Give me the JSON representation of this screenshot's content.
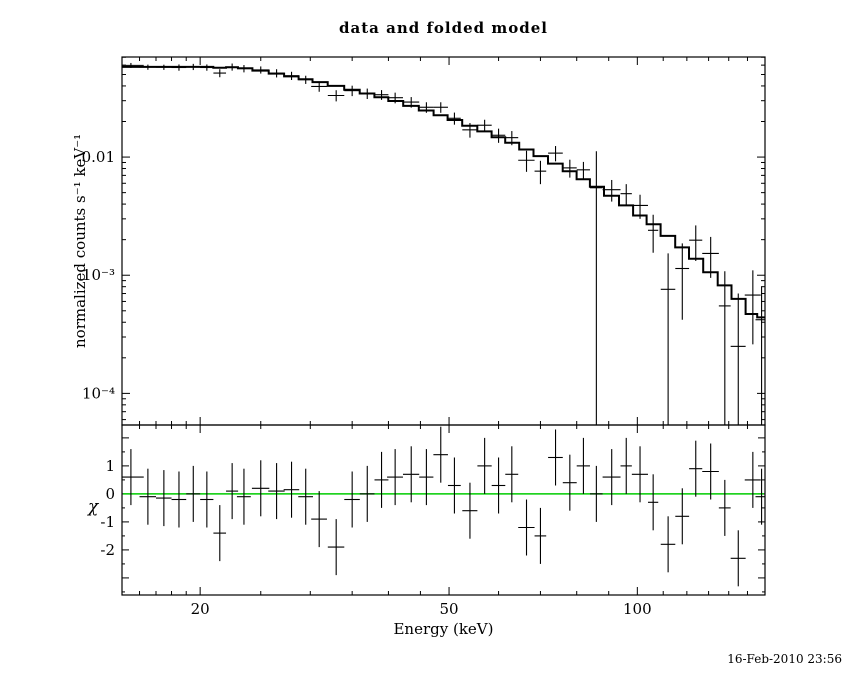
{
  "timestamp": "16-Feb-2010 23:56",
  "chart_data": {
    "type": "scatter",
    "title": "data and folded model",
    "xlabel": "Energy (keV)",
    "ylabel_top": "normalized counts s⁻¹ keV⁻¹",
    "ylabel_bottom": "χ",
    "x_scale": "log",
    "y_scale_top": "log",
    "xlim": [
      15,
      160
    ],
    "ylim_top": [
      5.4e-05,
      0.0703
    ],
    "ylim_bottom": [
      -3.61,
      2.46
    ],
    "x_ticks": [
      {
        "v": 20,
        "label": "20"
      },
      {
        "v": 50,
        "label": "50"
      },
      {
        "v": 100,
        "label": "100"
      }
    ],
    "x_minor_ticks": [
      16,
      17,
      18,
      19,
      25,
      30,
      35,
      40,
      45,
      60,
      70,
      80,
      90,
      110,
      120,
      130,
      140,
      150,
      160
    ],
    "y_ticks_top": [
      {
        "v": 0.01,
        "label": "0.01"
      },
      {
        "v": 0.001,
        "label": "10⁻³"
      },
      {
        "v": 0.0001,
        "label": "10⁻⁴"
      }
    ],
    "y_ticks_bottom": [
      {
        "v": 1,
        "label": "1"
      },
      {
        "v": 0,
        "label": "0"
      },
      {
        "v": -1,
        "label": "-1"
      },
      {
        "v": -2,
        "label": "-2"
      }
    ],
    "zero_line_color": "#00cc00",
    "residual_error": 1,
    "points": [
      {
        "e": 15.5,
        "de": 0.75,
        "y": 0.0597,
        "dy": 0.0029,
        "m": 0.058,
        "chi": 0.6
      },
      {
        "e": 16.5,
        "de": 0.5,
        "y": 0.0577,
        "dy": 0.0029,
        "m": 0.058,
        "chi": -0.1
      },
      {
        "e": 17.5,
        "de": 0.5,
        "y": 0.0576,
        "dy": 0.0029,
        "m": 0.058,
        "chi": -0.15
      },
      {
        "e": 18.5,
        "de": 0.5,
        "y": 0.0573,
        "dy": 0.0035,
        "m": 0.058,
        "chi": -0.2
      },
      {
        "e": 19.5,
        "de": 0.5,
        "y": 0.058,
        "dy": 0.0035,
        "m": 0.058,
        "chi": 0.0
      },
      {
        "e": 20.5,
        "de": 0.5,
        "y": 0.0573,
        "dy": 0.0035,
        "m": 0.058,
        "chi": -0.2
      },
      {
        "e": 21.5,
        "de": 0.5,
        "y": 0.0514,
        "dy": 0.004,
        "m": 0.057,
        "chi": -1.4
      },
      {
        "e": 22.5,
        "de": 0.5,
        "y": 0.0579,
        "dy": 0.004,
        "m": 0.0575,
        "chi": 0.1
      },
      {
        "e": 23.5,
        "de": 0.6,
        "y": 0.0561,
        "dy": 0.004,
        "m": 0.0565,
        "chi": -0.1
      },
      {
        "e": 25,
        "de": 0.8,
        "y": 0.0547,
        "dy": 0.0038,
        "m": 0.0539,
        "chi": 0.2
      },
      {
        "e": 26.5,
        "de": 0.8,
        "y": 0.0513,
        "dy": 0.0041,
        "m": 0.0509,
        "chi": 0.1
      },
      {
        "e": 28,
        "de": 0.8,
        "y": 0.0488,
        "dy": 0.0039,
        "m": 0.0482,
        "chi": 0.15
      },
      {
        "e": 29.5,
        "de": 0.8,
        "y": 0.0452,
        "dy": 0.0036,
        "m": 0.0456,
        "chi": -0.1
      },
      {
        "e": 31,
        "de": 0.9,
        "y": 0.0396,
        "dy": 0.0039,
        "m": 0.0431,
        "chi": -0.9
      },
      {
        "e": 33,
        "de": 1.0,
        "y": 0.0332,
        "dy": 0.0036,
        "m": 0.04,
        "chi": -1.9
      },
      {
        "e": 35,
        "de": 1.0,
        "y": 0.0365,
        "dy": 0.0037,
        "m": 0.0372,
        "chi": -0.2
      },
      {
        "e": 37,
        "de": 1.0,
        "y": 0.0345,
        "dy": 0.0035,
        "m": 0.0345,
        "chi": 0.0
      },
      {
        "e": 39,
        "de": 1.0,
        "y": 0.0337,
        "dy": 0.0032,
        "m": 0.0321,
        "chi": 0.5
      },
      {
        "e": 41,
        "de": 1.2,
        "y": 0.0318,
        "dy": 0.0033,
        "m": 0.0298,
        "chi": 0.6
      },
      {
        "e": 43.5,
        "de": 1.3,
        "y": 0.0292,
        "dy": 0.003,
        "m": 0.0271,
        "chi": 0.7
      },
      {
        "e": 46,
        "de": 1.2,
        "y": 0.0264,
        "dy": 0.0027,
        "m": 0.0248,
        "chi": 0.6
      },
      {
        "e": 48.5,
        "de": 1.3,
        "y": 0.0264,
        "dy": 0.0027,
        "m": 0.0226,
        "chi": 1.4
      },
      {
        "e": 51,
        "de": 1.2,
        "y": 0.0213,
        "dy": 0.0025,
        "m": 0.0206,
        "chi": 0.3
      },
      {
        "e": 54,
        "de": 1.5,
        "y": 0.017,
        "dy": 0.0024,
        "m": 0.0184,
        "chi": -0.6
      },
      {
        "e": 57,
        "de": 1.5,
        "y": 0.0186,
        "dy": 0.0021,
        "m": 0.0165,
        "chi": 1.0
      },
      {
        "e": 60,
        "de": 1.5,
        "y": 0.0153,
        "dy": 0.0021,
        "m": 0.0147,
        "chi": 0.3
      },
      {
        "e": 63,
        "de": 1.5,
        "y": 0.0146,
        "dy": 0.002,
        "m": 0.0132,
        "chi": 0.7
      },
      {
        "e": 66.5,
        "de": 2.0,
        "y": 0.0094,
        "dy": 0.0019,
        "m": 0.0116,
        "chi": -1.2
      },
      {
        "e": 70,
        "de": 1.5,
        "y": 0.0076,
        "dy": 0.0017,
        "m": 0.0102,
        "chi": -1.5
      },
      {
        "e": 74,
        "de": 2.0,
        "y": 0.0108,
        "dy": 0.0016,
        "m": 0.0088,
        "chi": 1.3
      },
      {
        "e": 78,
        "de": 2.0,
        "y": 0.0081,
        "dy": 0.0014,
        "m": 0.0076,
        "chi": 0.4
      },
      {
        "e": 82,
        "de": 2.0,
        "y": 0.0078,
        "dy": 0.0013,
        "m": 0.0065,
        "chi": 1.0
      },
      {
        "e": 86,
        "de": 2.0,
        "y": 0.0055,
        "dy": 0.0057,
        "m": 0.0056,
        "chi": 0.0
      },
      {
        "e": 91,
        "de": 3.0,
        "y": 0.0053,
        "dy": 0.0011,
        "m": 0.0047,
        "chi": 0.6
      },
      {
        "e": 96,
        "de": 2.0,
        "y": 0.0049,
        "dy": 0.001,
        "m": 0.0039,
        "chi": 1.0
      },
      {
        "e": 101,
        "de": 3.0,
        "y": 0.0039,
        "dy": 0.0009,
        "m": 0.0032,
        "chi": 0.7
      },
      {
        "e": 106,
        "de": 2.0,
        "y": 0.0024,
        "dy": 0.00085,
        "m": 0.0027,
        "chi": -0.3
      },
      {
        "e": 112,
        "de": 3.0,
        "y": 0.00076,
        "dy": 0.00077,
        "m": 0.00215,
        "chi": -1.8
      },
      {
        "e": 118,
        "de": 3.0,
        "y": 0.00114,
        "dy": 0.00072,
        "m": 0.00172,
        "chi": -0.8
      },
      {
        "e": 124,
        "de": 3.0,
        "y": 0.00198,
        "dy": 0.00066,
        "m": 0.00138,
        "chi": 0.9
      },
      {
        "e": 131,
        "de": 4.0,
        "y": 0.00153,
        "dy": 0.00058,
        "m": 0.00106,
        "chi": 0.8
      },
      {
        "e": 138,
        "de": 3.0,
        "y": 0.00055,
        "dy": 0.00053,
        "m": 0.00082,
        "chi": -0.5
      },
      {
        "e": 145,
        "de": 4.0,
        "y": 0.00025,
        "dy": 0.00045,
        "m": 0.00063,
        "chi": -2.3
      },
      {
        "e": 153,
        "de": 4.5,
        "y": 0.00068,
        "dy": 0.00042,
        "m": 0.00047,
        "chi": 0.5
      },
      {
        "e": 158,
        "de": 3.5,
        "y": 0.00042,
        "dy": 0.00038,
        "m": 0.00044,
        "chi": -0.1
      }
    ]
  }
}
